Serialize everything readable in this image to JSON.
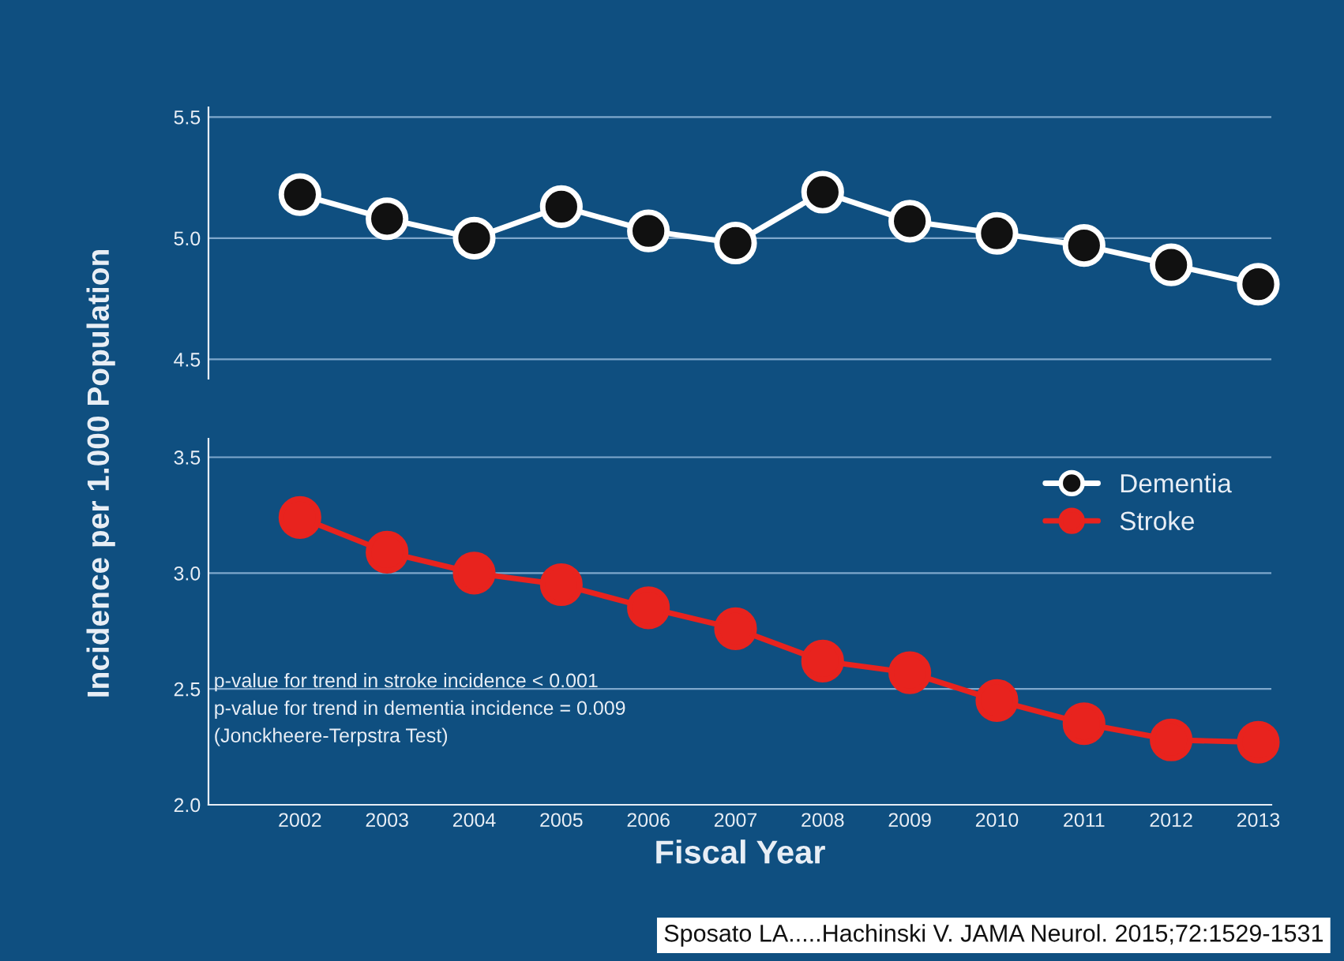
{
  "chart_data": [
    {
      "type": "line",
      "ylabel": "Incidence per 1.000 Population",
      "categories": [
        "2002",
        "2003",
        "2004",
        "2005",
        "2006",
        "2007",
        "2008",
        "2009",
        "2010",
        "2011",
        "2012",
        "2013"
      ],
      "ylim": [
        4.42,
        5.54
      ],
      "yticks": [
        {
          "value": 4.5,
          "label": "4.5"
        },
        {
          "value": 5.0,
          "label": "5.0"
        },
        {
          "value": 5.5,
          "label": "5.5"
        }
      ],
      "grid": "y",
      "tick_labels": "y",
      "marker": "circle",
      "line_style": "solid",
      "series": [
        {
          "name": "Dementia",
          "color": "#ffffff",
          "values": [
            5.18,
            5.08,
            5.0,
            5.13,
            5.03,
            4.98,
            5.19,
            5.07,
            5.02,
            4.97,
            4.89,
            4.81
          ]
        }
      ]
    },
    {
      "type": "line",
      "xlabel": "Fiscal Year",
      "categories": [
        "2002",
        "2003",
        "2004",
        "2005",
        "2006",
        "2007",
        "2008",
        "2009",
        "2010",
        "2011",
        "2012",
        "2013"
      ],
      "ylim": [
        2.0,
        3.58
      ],
      "yticks": [
        {
          "value": 2.0,
          "label": "2.0"
        },
        {
          "value": 2.5,
          "label": "2.5"
        },
        {
          "value": 3.0,
          "label": "3.0"
        },
        {
          "value": 3.5,
          "label": "3.5"
        }
      ],
      "grid": "y",
      "legend": "top right",
      "marker": "circle",
      "line_style": "solid",
      "series": [
        {
          "name": "Stroke",
          "color": "#e8231e",
          "values": [
            3.24,
            3.09,
            3.0,
            2.95,
            2.85,
            2.76,
            2.62,
            2.57,
            2.45,
            2.35,
            2.28,
            2.27
          ]
        }
      ],
      "annotations": [
        "p-value for trend in stroke incidence < 0.001",
        "p-value for trend in dementia incidence = 0.009",
        "(Jonckheere-Terpstra Test)",
        "Sposato LA.....Hachinski V. JAMA Neurol. 2015;72:1529-1531"
      ]
    }
  ]
}
